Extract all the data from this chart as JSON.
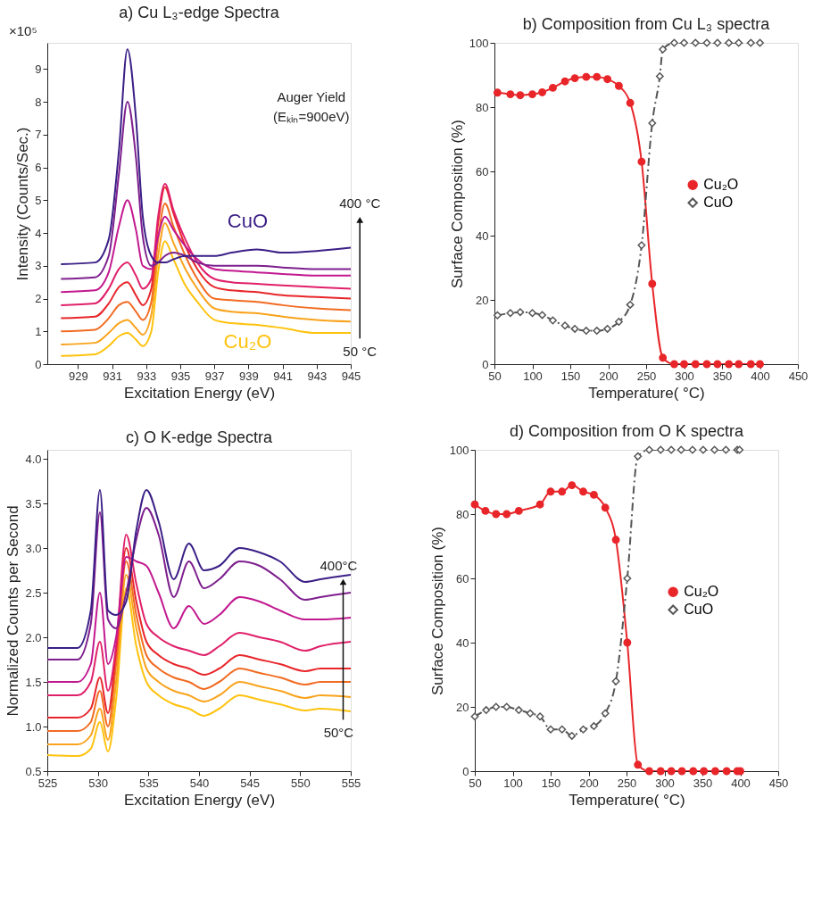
{
  "chart_data": [
    {
      "type": "line",
      "title": "a) Cu L₃-edge Spectra",
      "xlabel": "Excitation Energy (eV)",
      "ylabel": "Intensity (Counts/Sec.)",
      "xlim": [
        927.2,
        945
      ],
      "xticks": [
        929,
        931,
        933,
        935,
        937,
        939,
        941,
        943,
        945
      ],
      "ylim": [
        0,
        9.8
      ],
      "yticks": [
        0,
        1,
        2,
        3,
        4,
        5,
        6,
        7,
        8,
        9
      ],
      "x": [
        928,
        930,
        930.8,
        931.4,
        931.9,
        932.4,
        932.8,
        933.3,
        933.7,
        934.1,
        934.6,
        935.3,
        936,
        937,
        938,
        939.5,
        941,
        943,
        945
      ],
      "series": [
        {
          "color": "#ffc20e",
          "values": [
            0.25,
            0.3,
            0.55,
            0.85,
            0.95,
            0.75,
            0.55,
            1.0,
            2.8,
            3.75,
            3.2,
            2.4,
            1.9,
            1.35,
            1.25,
            1.2,
            1.1,
            0.95,
            0.95
          ]
        },
        {
          "color": "#f9a31c",
          "values": [
            0.6,
            0.65,
            0.95,
            1.25,
            1.35,
            1.1,
            0.9,
            1.5,
            3.3,
            4.3,
            3.7,
            2.9,
            2.3,
            1.7,
            1.6,
            1.55,
            1.45,
            1.35,
            1.3
          ]
        },
        {
          "color": "#f26b22",
          "values": [
            1.0,
            1.05,
            1.4,
            1.8,
            1.9,
            1.6,
            1.35,
            1.9,
            3.8,
            4.9,
            4.2,
            3.3,
            2.6,
            2.0,
            1.95,
            1.9,
            1.8,
            1.7,
            1.65
          ]
        },
        {
          "color": "#e8262a",
          "values": [
            1.4,
            1.45,
            1.85,
            2.35,
            2.5,
            2.1,
            1.8,
            2.3,
            4.3,
            5.4,
            4.6,
            3.6,
            2.9,
            2.35,
            2.25,
            2.2,
            2.1,
            2.05,
            2.0
          ]
        },
        {
          "color": "#e0206a",
          "values": [
            1.8,
            1.85,
            2.3,
            2.9,
            3.1,
            2.7,
            2.3,
            2.6,
            4.5,
            5.5,
            4.7,
            3.8,
            3.1,
            2.6,
            2.5,
            2.45,
            2.4,
            2.35,
            2.3
          ]
        },
        {
          "color": "#c2188f",
          "values": [
            2.2,
            2.25,
            2.8,
            4.2,
            5.0,
            4.1,
            3.0,
            2.9,
            3.9,
            4.5,
            4.1,
            3.6,
            3.2,
            2.9,
            2.85,
            2.8,
            2.75,
            2.7,
            2.7
          ]
        },
        {
          "color": "#7e1f8e",
          "values": [
            2.6,
            2.65,
            3.3,
            5.8,
            8.0,
            6.3,
            3.9,
            3.0,
            3.1,
            3.3,
            3.4,
            3.3,
            3.1,
            3.0,
            3.0,
            3.0,
            2.95,
            2.9,
            2.9
          ]
        },
        {
          "color": "#3b1f86",
          "values": [
            3.05,
            3.1,
            3.8,
            6.5,
            9.6,
            7.5,
            4.5,
            3.3,
            3.1,
            3.1,
            3.2,
            3.3,
            3.3,
            3.3,
            3.4,
            3.5,
            3.4,
            3.45,
            3.55
          ]
        }
      ],
      "annotations": [
        "×10⁵",
        "Auger Yield",
        "(Eₖᵢₙ=900eV)",
        "400 °C",
        "50 °C",
        "CuO",
        "Cu₂O"
      ]
    },
    {
      "type": "line",
      "title": "b) Composition from Cu L₃ spectra",
      "xlabel": "Temperature( °C)",
      "ylabel": "Surface Composition (%)",
      "xlim": [
        50,
        450
      ],
      "xticks": [
        50,
        100,
        150,
        200,
        250,
        300,
        350,
        400,
        450
      ],
      "ylim": [
        0,
        100
      ],
      "yticks": [
        0,
        20,
        40,
        60,
        80,
        100
      ],
      "legend": "right",
      "series": [
        {
          "name": "Cu₂O",
          "color": "#e8262a",
          "marker": "circle",
          "line_style": "solid",
          "x": [
            54,
            71,
            84,
            100,
            113,
            127,
            143,
            156,
            171,
            185,
            199,
            214,
            229,
            244,
            258,
            272,
            287,
            300,
            315,
            330,
            344,
            359,
            372,
            388,
            400
          ],
          "values": [
            84.5,
            84,
            83.7,
            84,
            84.6,
            86,
            88,
            89,
            89.4,
            89.4,
            88.7,
            86.6,
            81.3,
            63,
            25,
            2,
            0,
            0,
            0,
            0,
            0,
            0,
            0,
            0,
            0
          ]
        },
        {
          "name": "CuO",
          "color": "#555555",
          "marker": "diamond",
          "line_style": "dashed",
          "x": [
            54,
            71,
            84,
            100,
            113,
            127,
            143,
            156,
            171,
            185,
            199,
            214,
            229,
            244,
            258,
            268,
            272,
            287,
            300,
            315,
            330,
            344,
            359,
            372,
            388,
            400
          ],
          "values": [
            15.2,
            15.9,
            16.2,
            15.9,
            15.3,
            13.6,
            12,
            11,
            10.4,
            10.4,
            11,
            13.2,
            18.5,
            37,
            75,
            89.6,
            98,
            100,
            100,
            100,
            100,
            100,
            100,
            100,
            100,
            100
          ]
        }
      ]
    },
    {
      "type": "line",
      "title": "c) O K-edge Spectra",
      "xlabel": "Excitation Energy (eV)",
      "ylabel": "Normalized Counts per Second",
      "xlim": [
        525,
        555
      ],
      "xticks": [
        525,
        530,
        535,
        540,
        545,
        550,
        555
      ],
      "ylim": [
        0.5,
        4.1
      ],
      "yticks": [
        0.5,
        {
          "value": 1,
          "label": "1.0"
        },
        1.5,
        {
          "value": 2,
          "label": "2.0"
        },
        2.5,
        {
          "value": 3,
          "label": "3.0"
        },
        3.5,
        {
          "value": 4,
          "label": "4.0"
        }
      ],
      "x": [
        525,
        528,
        529.3,
        530.2,
        531,
        531.8,
        532.8,
        533.8,
        534.8,
        536,
        537.5,
        539,
        540.5,
        542,
        544,
        546,
        548,
        550.5,
        552,
        555
      ],
      "series": [
        {
          "color": "#ffc20e",
          "values": [
            0.68,
            0.67,
            0.75,
            1.05,
            0.72,
            1.3,
            2.55,
            1.9,
            1.5,
            1.35,
            1.25,
            1.2,
            1.12,
            1.2,
            1.35,
            1.3,
            1.25,
            1.18,
            1.2,
            1.17
          ]
        },
        {
          "color": "#f9a31c",
          "values": [
            0.8,
            0.8,
            0.9,
            1.2,
            0.85,
            1.5,
            2.7,
            2.1,
            1.65,
            1.5,
            1.4,
            1.35,
            1.28,
            1.35,
            1.5,
            1.45,
            1.4,
            1.32,
            1.35,
            1.33
          ]
        },
        {
          "color": "#f26b22",
          "values": [
            0.95,
            0.95,
            1.05,
            1.4,
            1.0,
            1.7,
            2.85,
            2.25,
            1.8,
            1.65,
            1.55,
            1.5,
            1.42,
            1.5,
            1.65,
            1.6,
            1.55,
            1.47,
            1.5,
            1.5
          ]
        },
        {
          "color": "#e8262a",
          "values": [
            1.1,
            1.1,
            1.2,
            1.55,
            1.15,
            1.85,
            3.0,
            2.4,
            1.95,
            1.8,
            1.7,
            1.65,
            1.58,
            1.65,
            1.8,
            1.75,
            1.7,
            1.62,
            1.65,
            1.65
          ]
        },
        {
          "color": "#e0206a",
          "values": [
            1.35,
            1.35,
            1.5,
            1.95,
            1.4,
            1.9,
            3.15,
            2.6,
            2.15,
            2.0,
            1.9,
            1.85,
            1.8,
            1.9,
            2.05,
            2.0,
            1.95,
            1.85,
            1.9,
            1.95
          ]
        },
        {
          "color": "#c2188f",
          "values": [
            1.5,
            1.5,
            1.7,
            2.5,
            1.7,
            2.0,
            2.9,
            2.85,
            2.8,
            2.5,
            2.1,
            2.35,
            2.15,
            2.25,
            2.45,
            2.4,
            2.3,
            2.2,
            2.2,
            2.22
          ]
        },
        {
          "color": "#7e1f8e",
          "values": [
            1.75,
            1.75,
            2.15,
            3.4,
            2.2,
            2.1,
            2.5,
            3.1,
            3.45,
            3.15,
            2.45,
            2.85,
            2.55,
            2.65,
            2.85,
            2.8,
            2.65,
            2.42,
            2.45,
            2.5
          ]
        },
        {
          "color": "#3b1f86",
          "values": [
            1.88,
            1.88,
            2.3,
            3.65,
            2.3,
            2.25,
            2.4,
            3.2,
            3.65,
            3.3,
            2.65,
            3.05,
            2.75,
            2.8,
            3.0,
            2.95,
            2.85,
            2.62,
            2.65,
            2.7
          ]
        }
      ],
      "annotations": [
        "400°C",
        "50°C"
      ]
    },
    {
      "type": "line",
      "title": "d) Composition from O K spectra",
      "xlabel": "Temperature( °C)",
      "ylabel": "Surface Composition (%)",
      "xlim": [
        50,
        450
      ],
      "xticks": [
        50,
        100,
        150,
        200,
        250,
        300,
        350,
        400,
        450
      ],
      "ylim": [
        0,
        100
      ],
      "yticks": [
        0,
        20,
        40,
        60,
        80,
        100
      ],
      "legend": "right",
      "series": [
        {
          "name": "Cu₂O",
          "color": "#e8262a",
          "marker": "circle",
          "line_style": "solid",
          "x": [
            50,
            64,
            78,
            92,
            108,
            136,
            150,
            165,
            178,
            193,
            207,
            222,
            236,
            251,
            265,
            280,
            295,
            309,
            323,
            338,
            352,
            367,
            382,
            396,
            400
          ],
          "values": [
            83,
            81,
            80,
            80,
            81,
            83,
            87,
            87,
            89,
            87,
            86,
            82,
            72,
            40,
            2,
            0,
            0,
            0,
            0,
            0,
            0,
            0,
            0,
            0,
            0
          ]
        },
        {
          "name": "CuO",
          "color": "#555555",
          "marker": "diamond",
          "line_style": "dashed",
          "x": [
            50,
            65,
            78,
            92,
            108,
            123,
            136,
            150,
            165,
            178,
            193,
            207,
            222,
            236,
            251,
            265,
            280,
            295,
            309,
            322,
            337,
            351,
            366,
            381,
            396,
            399
          ],
          "values": [
            17,
            19,
            20,
            20,
            19,
            18,
            17,
            13,
            13,
            11,
            13,
            14,
            18,
            28,
            60,
            98,
            100,
            100,
            100,
            100,
            100,
            100,
            100,
            100,
            100,
            100
          ]
        }
      ]
    }
  ]
}
